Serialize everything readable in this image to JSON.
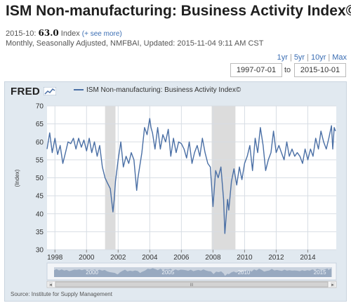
{
  "header": {
    "title": "ISM Non-manufacturing: Business Activity Index©",
    "latest_date": "2015-10:",
    "latest_value": "63.0",
    "latest_unit": "Index",
    "see_more": "(+ see more)",
    "meta": "Monthly, Seasonally Adjusted, NMFBAI, Updated: 2015-11-04 9:11 AM CST"
  },
  "controls": {
    "range_links": [
      "1yr",
      "5yr",
      "10yr",
      "Max"
    ],
    "start_date": "1997-07-01",
    "to_label": "to",
    "end_date": "2015-10-01"
  },
  "chart": {
    "logo_text": "FRED",
    "legend_label": "ISM Non-manufacturing: Business Activity Index©",
    "source": "Source: Institute for Supply Management",
    "navigator_labels": [
      "2000",
      "2005",
      "2010",
      "2015"
    ],
    "scroll_grip": "III"
  },
  "chart_data": {
    "type": "line",
    "title": "",
    "xlabel": "",
    "ylabel": "(Index)",
    "xlim": [
      1997.5,
      2015.8
    ],
    "ylim": [
      30,
      70
    ],
    "yticks": [
      30,
      35,
      40,
      45,
      50,
      55,
      60,
      65,
      70
    ],
    "xticks": [
      1998,
      2000,
      2002,
      2004,
      2006,
      2008,
      2010,
      2012,
      2014
    ],
    "grid": true,
    "line_color": "#4a6fa5",
    "recession_color": "#dcdcdc",
    "recessions": [
      [
        2001.17,
        2001.83
      ],
      [
        2007.92,
        2009.42
      ]
    ],
    "series": [
      {
        "name": "ISM Non-manufacturing: Business Activity Index©",
        "x": [
          1997.5,
          1997.67,
          1997.83,
          1998.0,
          1998.17,
          1998.33,
          1998.5,
          1998.67,
          1998.83,
          1999.0,
          1999.17,
          1999.33,
          1999.5,
          1999.67,
          1999.83,
          2000.0,
          2000.17,
          2000.33,
          2000.5,
          2000.67,
          2000.83,
          2001.0,
          2001.17,
          2001.33,
          2001.5,
          2001.67,
          2001.75,
          2001.83,
          2002.0,
          2002.17,
          2002.33,
          2002.5,
          2002.67,
          2002.83,
          2003.0,
          2003.17,
          2003.25,
          2003.5,
          2003.67,
          2003.83,
          2004.0,
          2004.08,
          2004.17,
          2004.33,
          2004.5,
          2004.67,
          2004.83,
          2005.0,
          2005.17,
          2005.33,
          2005.5,
          2005.67,
          2005.83,
          2006.0,
          2006.17,
          2006.33,
          2006.5,
          2006.67,
          2006.83,
          2007.0,
          2007.17,
          2007.33,
          2007.5,
          2007.67,
          2007.83,
          2008.0,
          2008.17,
          2008.33,
          2008.5,
          2008.67,
          2008.75,
          2008.83,
          2008.92,
          2009.0,
          2009.17,
          2009.33,
          2009.5,
          2009.67,
          2009.83,
          2010.0,
          2010.17,
          2010.33,
          2010.5,
          2010.67,
          2010.83,
          2011.0,
          2011.17,
          2011.33,
          2011.5,
          2011.67,
          2011.83,
          2012.0,
          2012.17,
          2012.33,
          2012.5,
          2012.67,
          2012.83,
          2013.0,
          2013.17,
          2013.33,
          2013.5,
          2013.67,
          2013.83,
          2014.0,
          2014.17,
          2014.33,
          2014.5,
          2014.67,
          2014.83,
          2015.0,
          2015.17,
          2015.33,
          2015.5,
          2015.58,
          2015.67,
          2015.75
        ],
        "values": [
          58.0,
          62.5,
          57.0,
          61.0,
          56.5,
          59.0,
          54.0,
          57.0,
          60.0,
          59.5,
          61.0,
          58.0,
          61.0,
          58.5,
          60.5,
          57.5,
          61.0,
          57.0,
          60.0,
          56.0,
          59.0,
          53.0,
          50.0,
          48.5,
          47.0,
          40.5,
          44.0,
          49.0,
          55.0,
          60.0,
          53.0,
          56.0,
          54.0,
          57.0,
          55.0,
          46.5,
          50.0,
          57.0,
          64.0,
          62.0,
          66.5,
          64.0,
          62.5,
          58.0,
          64.0,
          58.0,
          62.0,
          60.0,
          63.5,
          56.0,
          61.0,
          57.0,
          60.0,
          59.5,
          58.0,
          55.5,
          60.0,
          54.0,
          57.0,
          59.0,
          56.0,
          61.0,
          57.0,
          54.0,
          53.0,
          42.0,
          52.0,
          50.0,
          53.0,
          44.0,
          34.5,
          39.0,
          44.0,
          41.0,
          49.0,
          52.5,
          48.0,
          53.0,
          49.5,
          54.0,
          56.0,
          59.0,
          52.0,
          61.0,
          57.0,
          64.0,
          59.0,
          52.0,
          55.0,
          57.0,
          63.0,
          57.0,
          59.0,
          57.0,
          55.0,
          60.0,
          56.0,
          58.0,
          56.0,
          57.0,
          56.0,
          54.0,
          58.0,
          55.0,
          58.0,
          56.0,
          61.0,
          58.0,
          63.0,
          60.0,
          58.0,
          61.0,
          64.5,
          58.0,
          64.0,
          63.0
        ]
      }
    ]
  }
}
